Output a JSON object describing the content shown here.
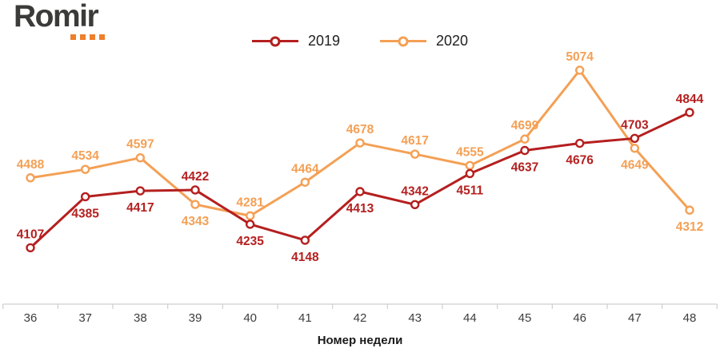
{
  "logo": {
    "text": "Romir",
    "text_color": "#3b3b3a",
    "accent_color": "#ee7f2c",
    "dot_count": 4
  },
  "chart_data": {
    "type": "line",
    "x": [
      36,
      37,
      38,
      39,
      40,
      41,
      42,
      43,
      44,
      45,
      46,
      47,
      48
    ],
    "xlabel": "Номер недели",
    "ylim": [
      4000,
      5200
    ],
    "grid": false,
    "legend_position": "top-center",
    "markers": "hollow-circle",
    "data_labels": true,
    "axis_color": "#cfcfcf",
    "series": [
      {
        "name": "2019",
        "color": "#b51f1f",
        "values": [
          4107,
          4385,
          4417,
          4422,
          4235,
          4148,
          4413,
          4342,
          4511,
          4637,
          4676,
          4703,
          4844
        ],
        "label_side": [
          "above",
          "below",
          "below",
          "above",
          "below",
          "below",
          "below",
          "above",
          "below",
          "below",
          "below",
          "above",
          "above"
        ]
      },
      {
        "name": "2020",
        "color": "#f4a055",
        "values": [
          4488,
          4534,
          4597,
          4343,
          4281,
          4464,
          4678,
          4617,
          4555,
          4699,
          5074,
          4649,
          4312
        ],
        "label_side": [
          "above",
          "above",
          "above",
          "below",
          "above",
          "above",
          "above",
          "above",
          "above",
          "above",
          "above",
          "below",
          "below"
        ]
      }
    ]
  }
}
